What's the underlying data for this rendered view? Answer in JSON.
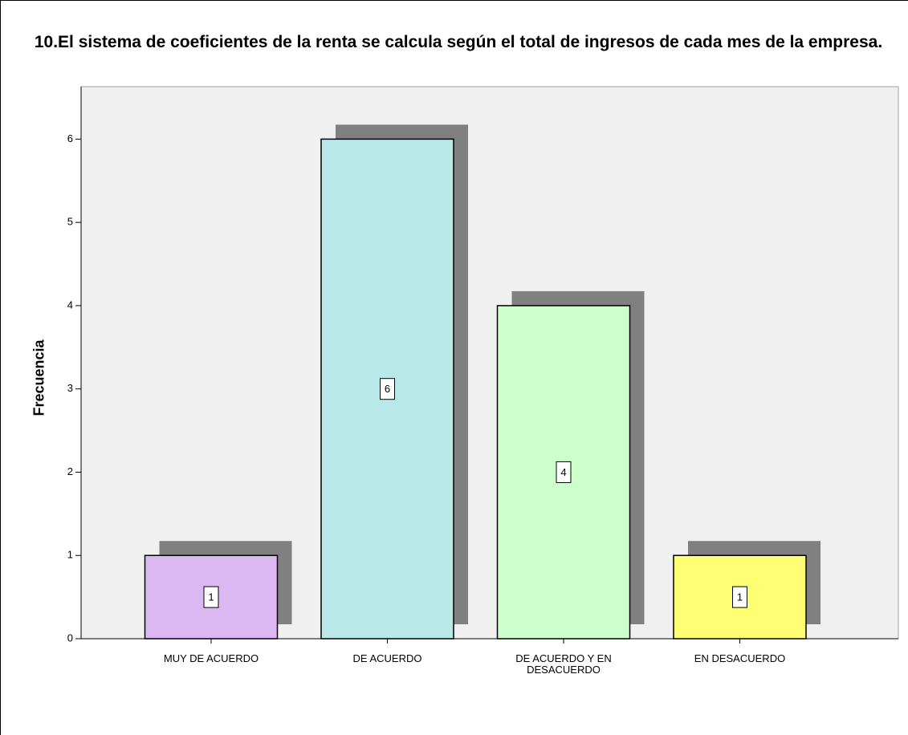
{
  "chart_data": {
    "type": "bar",
    "title": "10.El sistema de coeficientes de la renta se calcula según el total de ingresos de cada mes de la empresa.",
    "y_label": "Frecuencia",
    "categories": [
      "MUY DE ACUERDO",
      "DE ACUERDO",
      "DE ACUERDO Y EN DESACUERDO",
      "EN DESACUERDO"
    ],
    "values": [
      1,
      6,
      4,
      1
    ],
    "colors": [
      "#dcb8f2",
      "#b8e8e8",
      "#ccffcc",
      "#ffff73"
    ],
    "ylim": [
      0,
      6.63
    ],
    "yticks": [
      0,
      1,
      2,
      3,
      4,
      5,
      6
    ]
  }
}
